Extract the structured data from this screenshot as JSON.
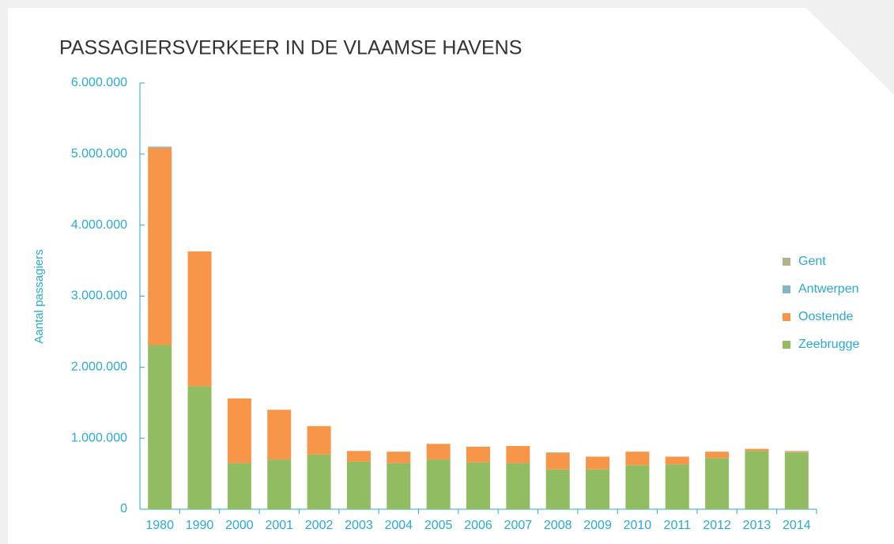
{
  "chart_data": {
    "type": "bar",
    "stacked": true,
    "title": "PASSAGIERSVERKEER IN DE VLAAMSE HAVENS",
    "ylabel": "Aantal passagiers",
    "categories": [
      "1980",
      "1990",
      "2000",
      "2001",
      "2002",
      "2003",
      "2004",
      "2005",
      "2006",
      "2007",
      "2008",
      "2009",
      "2010",
      "2011",
      "2012",
      "2013",
      "2014"
    ],
    "series": [
      {
        "name": "Zeebrugge",
        "color": "#92bc62",
        "values": [
          2310000,
          1730000,
          650000,
          700000,
          770000,
          670000,
          650000,
          700000,
          660000,
          650000,
          560000,
          560000,
          620000,
          630000,
          720000,
          820000,
          800000
        ]
      },
      {
        "name": "Oostende",
        "color": "#f79649",
        "values": [
          2780000,
          1900000,
          910000,
          700000,
          400000,
          150000,
          160000,
          220000,
          220000,
          240000,
          230000,
          180000,
          190000,
          110000,
          90000,
          30000,
          10000
        ]
      },
      {
        "name": "Antwerpen",
        "color": "#82b8c2",
        "values": [
          15000,
          0,
          0,
          0,
          0,
          0,
          0,
          0,
          0,
          0,
          0,
          0,
          0,
          0,
          0,
          0,
          0
        ]
      },
      {
        "name": "Gent",
        "color": "#b4b28a",
        "values": [
          0,
          0,
          0,
          0,
          0,
          0,
          0,
          0,
          0,
          0,
          10000,
          0,
          0,
          0,
          0,
          0,
          10000
        ]
      }
    ],
    "ylim": [
      0,
      6000000
    ],
    "yticks": [
      0,
      {
        "value": 1000000,
        "label": "1.000.000"
      },
      {
        "value": 2000000,
        "label": "2.000.000"
      },
      {
        "value": 3000000,
        "label": "3.000.000"
      },
      {
        "value": 4000000,
        "label": "4.000.000"
      },
      {
        "value": 5000000,
        "label": "5.000.000"
      },
      {
        "value": 6000000,
        "label": "6.000.000"
      }
    ],
    "legend": "right"
  }
}
